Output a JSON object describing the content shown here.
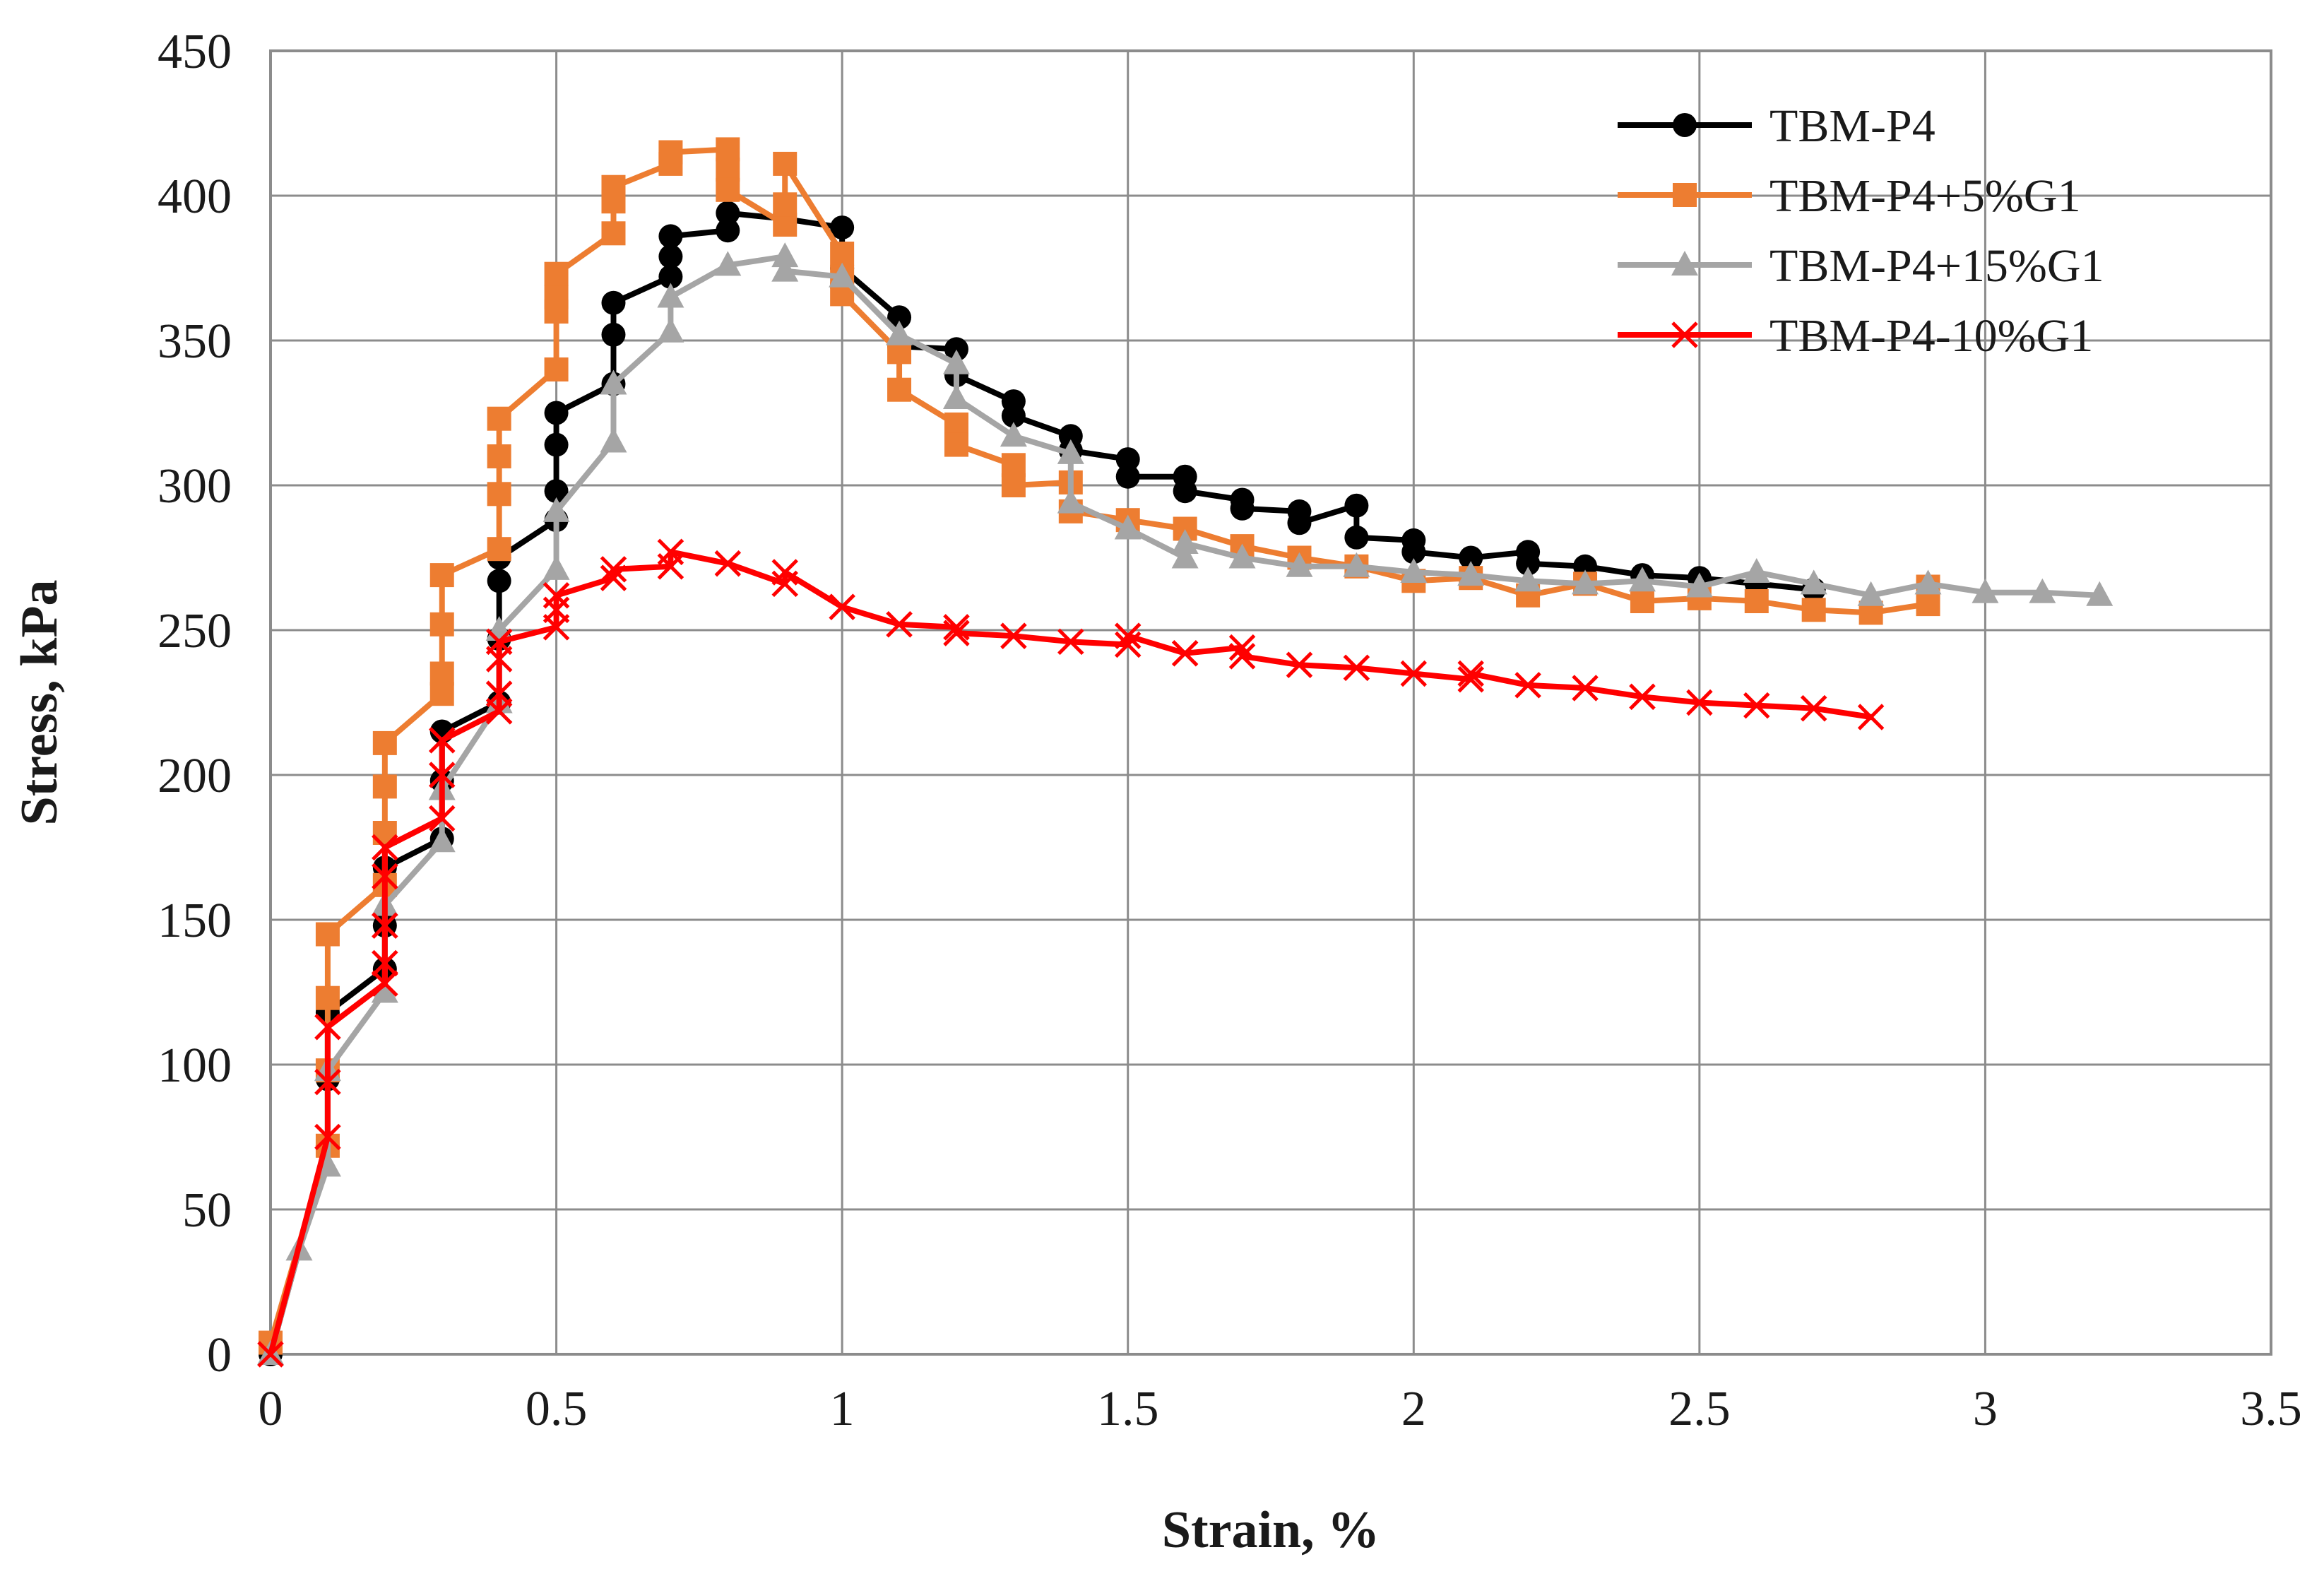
{
  "chart_data": {
    "type": "line",
    "title": "",
    "xlabel": "Strain, %",
    "ylabel": "Stress, kPa",
    "xlim": [
      0,
      3.5
    ],
    "ylim": [
      0,
      450
    ],
    "x_ticks": [
      0,
      0.5,
      1,
      1.5,
      2,
      2.5,
      3,
      3.5
    ],
    "x_tick_labels": [
      "0",
      "0.5",
      "1",
      "1.5",
      "2",
      "2.5",
      "3",
      "3.5"
    ],
    "y_ticks": [
      0,
      50,
      100,
      150,
      200,
      250,
      300,
      350,
      400,
      450
    ],
    "y_tick_labels": [
      "0",
      "50",
      "100",
      "150",
      "200",
      "250",
      "300",
      "350",
      "400",
      "450"
    ],
    "grid": true,
    "legend_position": "top-right",
    "series": [
      {
        "name": "TBM-P4",
        "color": "#000000",
        "marker": "circle",
        "points": [
          [
            0,
            0
          ],
          [
            0.1,
            72
          ],
          [
            0.1,
            95
          ],
          [
            0.1,
            118
          ],
          [
            0.2,
            133
          ],
          [
            0.2,
            148
          ],
          [
            0.2,
            168
          ],
          [
            0.3,
            178
          ],
          [
            0.3,
            198
          ],
          [
            0.3,
            215
          ],
          [
            0.4,
            225
          ],
          [
            0.4,
            247
          ],
          [
            0.4,
            267
          ],
          [
            0.4,
            275
          ],
          [
            0.5,
            288
          ],
          [
            0.5,
            298
          ],
          [
            0.5,
            314
          ],
          [
            0.5,
            325
          ],
          [
            0.6,
            335
          ],
          [
            0.6,
            352
          ],
          [
            0.6,
            363
          ],
          [
            0.7,
            372
          ],
          [
            0.7,
            379
          ],
          [
            0.7,
            386
          ],
          [
            0.8,
            388
          ],
          [
            0.8,
            394
          ],
          [
            0.9,
            392
          ],
          [
            1.0,
            389
          ],
          [
            1.0,
            375
          ],
          [
            1.1,
            358
          ],
          [
            1.1,
            348
          ],
          [
            1.2,
            347
          ],
          [
            1.2,
            338
          ],
          [
            1.3,
            329
          ],
          [
            1.3,
            324
          ],
          [
            1.4,
            317
          ],
          [
            1.4,
            312
          ],
          [
            1.5,
            309
          ],
          [
            1.5,
            303
          ],
          [
            1.6,
            303
          ],
          [
            1.6,
            298
          ],
          [
            1.7,
            295
          ],
          [
            1.7,
            292
          ],
          [
            1.8,
            291
          ],
          [
            1.8,
            287
          ],
          [
            1.9,
            293
          ],
          [
            1.9,
            282
          ],
          [
            2.0,
            281
          ],
          [
            2.0,
            277
          ],
          [
            2.1,
            275
          ],
          [
            2.2,
            277
          ],
          [
            2.2,
            273
          ],
          [
            2.3,
            272
          ],
          [
            2.4,
            269
          ],
          [
            2.5,
            268
          ],
          [
            2.6,
            266
          ],
          [
            2.7,
            264
          ]
        ]
      },
      {
        "name": "TBM-P4+5%G1",
        "color": "#ED7D31",
        "marker": "square",
        "points": [
          [
            0,
            4
          ],
          [
            0.1,
            72
          ],
          [
            0.1,
            98
          ],
          [
            0.1,
            123
          ],
          [
            0.1,
            145
          ],
          [
            0.2,
            162
          ],
          [
            0.2,
            180
          ],
          [
            0.2,
            196
          ],
          [
            0.2,
            211
          ],
          [
            0.3,
            228
          ],
          [
            0.3,
            235
          ],
          [
            0.3,
            252
          ],
          [
            0.3,
            269
          ],
          [
            0.4,
            278
          ],
          [
            0.4,
            297
          ],
          [
            0.4,
            310
          ],
          [
            0.4,
            323
          ],
          [
            0.5,
            340
          ],
          [
            0.5,
            360
          ],
          [
            0.5,
            365
          ],
          [
            0.5,
            373
          ],
          [
            0.6,
            387
          ],
          [
            0.6,
            398
          ],
          [
            0.6,
            403
          ],
          [
            0.7,
            411
          ],
          [
            0.7,
            415
          ],
          [
            0.8,
            416
          ],
          [
            0.8,
            409
          ],
          [
            0.8,
            402
          ],
          [
            0.9,
            390
          ],
          [
            0.9,
            397
          ],
          [
            0.9,
            411
          ],
          [
            1.0,
            380
          ],
          [
            1.0,
            372
          ],
          [
            1.0,
            366
          ],
          [
            1.1,
            346
          ],
          [
            1.1,
            333
          ],
          [
            1.2,
            321
          ],
          [
            1.2,
            314
          ],
          [
            1.3,
            307
          ],
          [
            1.3,
            300
          ],
          [
            1.4,
            301
          ],
          [
            1.4,
            291
          ],
          [
            1.5,
            288
          ],
          [
            1.6,
            285
          ],
          [
            1.7,
            279
          ],
          [
            1.8,
            275
          ],
          [
            1.9,
            272
          ],
          [
            2.0,
            267
          ],
          [
            2.1,
            268
          ],
          [
            2.2,
            262
          ],
          [
            2.3,
            266
          ],
          [
            2.4,
            260
          ],
          [
            2.5,
            261
          ],
          [
            2.6,
            260
          ],
          [
            2.7,
            257
          ],
          [
            2.8,
            256
          ],
          [
            2.9,
            259
          ],
          [
            2.9,
            265
          ]
        ]
      },
      {
        "name": "TBM-P4+15%G1",
        "color": "#A5A5A5",
        "marker": "triangle",
        "points": [
          [
            0,
            0
          ],
          [
            0.05,
            36
          ],
          [
            0.1,
            65
          ],
          [
            0.1,
            98
          ],
          [
            0.2,
            125
          ],
          [
            0.2,
            155
          ],
          [
            0.3,
            177
          ],
          [
            0.3,
            195
          ],
          [
            0.4,
            225
          ],
          [
            0.4,
            250
          ],
          [
            0.5,
            271
          ],
          [
            0.5,
            291
          ],
          [
            0.6,
            315
          ],
          [
            0.6,
            335
          ],
          [
            0.7,
            353
          ],
          [
            0.7,
            365
          ],
          [
            0.8,
            376
          ],
          [
            0.9,
            379
          ],
          [
            0.9,
            374
          ],
          [
            1.0,
            372
          ],
          [
            1.1,
            352
          ],
          [
            1.2,
            342
          ],
          [
            1.2,
            330
          ],
          [
            1.3,
            317
          ],
          [
            1.4,
            311
          ],
          [
            1.4,
            294
          ],
          [
            1.5,
            285
          ],
          [
            1.6,
            275
          ],
          [
            1.6,
            280
          ],
          [
            1.7,
            275
          ],
          [
            1.8,
            272
          ],
          [
            1.9,
            272
          ],
          [
            2.0,
            270
          ],
          [
            2.1,
            269
          ],
          [
            2.2,
            267
          ],
          [
            2.3,
            266
          ],
          [
            2.4,
            267
          ],
          [
            2.5,
            265
          ],
          [
            2.6,
            270
          ],
          [
            2.7,
            266
          ],
          [
            2.8,
            262
          ],
          [
            2.9,
            266
          ],
          [
            3.0,
            263
          ],
          [
            3.1,
            263
          ],
          [
            3.2,
            262
          ]
        ]
      },
      {
        "name": "TBM-P4-10%G1",
        "color": "#FF0000",
        "marker": "x",
        "points": [
          [
            0,
            0
          ],
          [
            0.1,
            75
          ],
          [
            0.1,
            94
          ],
          [
            0.1,
            113
          ],
          [
            0.2,
            128
          ],
          [
            0.2,
            135
          ],
          [
            0.2,
            148
          ],
          [
            0.2,
            165
          ],
          [
            0.2,
            175
          ],
          [
            0.3,
            185
          ],
          [
            0.3,
            200
          ],
          [
            0.3,
            212
          ],
          [
            0.4,
            222
          ],
          [
            0.4,
            228
          ],
          [
            0.4,
            240
          ],
          [
            0.4,
            246
          ],
          [
            0.5,
            251
          ],
          [
            0.5,
            257
          ],
          [
            0.5,
            262
          ],
          [
            0.6,
            268
          ],
          [
            0.6,
            271
          ],
          [
            0.7,
            272
          ],
          [
            0.7,
            277
          ],
          [
            0.8,
            273
          ],
          [
            0.9,
            266
          ],
          [
            0.9,
            270
          ],
          [
            1.0,
            258
          ],
          [
            1.1,
            252
          ],
          [
            1.2,
            251
          ],
          [
            1.2,
            249
          ],
          [
            1.3,
            248
          ],
          [
            1.4,
            246
          ],
          [
            1.5,
            245
          ],
          [
            1.5,
            248
          ],
          [
            1.6,
            242
          ],
          [
            1.7,
            244
          ],
          [
            1.7,
            241
          ],
          [
            1.8,
            238
          ],
          [
            1.9,
            237
          ],
          [
            2.0,
            235
          ],
          [
            2.1,
            233
          ],
          [
            2.1,
            235
          ],
          [
            2.2,
            231
          ],
          [
            2.3,
            230
          ],
          [
            2.4,
            227
          ],
          [
            2.5,
            225
          ],
          [
            2.6,
            224
          ],
          [
            2.7,
            223
          ],
          [
            2.8,
            220
          ]
        ]
      }
    ]
  }
}
